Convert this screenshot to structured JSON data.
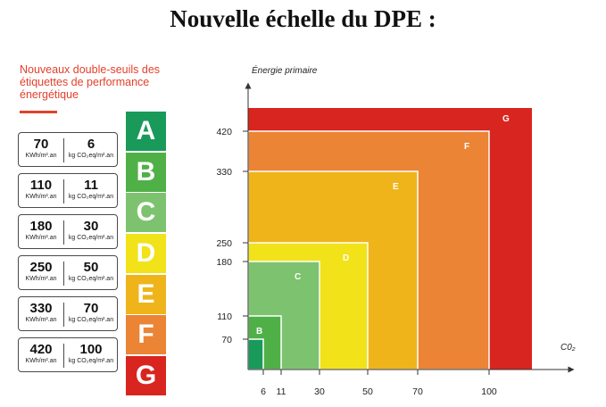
{
  "title": "Nouvelle échelle du DPE :",
  "subtitle": "Nouveaux double-seuils des étiquettes de performance énergétique",
  "units": {
    "energy": "KWh/m².an",
    "co2": "kg CO₂eq/m².an"
  },
  "thresholds": [
    {
      "energy": "70",
      "co2": "6"
    },
    {
      "energy": "110",
      "co2": "11"
    },
    {
      "energy": "180",
      "co2": "30"
    },
    {
      "energy": "250",
      "co2": "50"
    },
    {
      "energy": "330",
      "co2": "70"
    },
    {
      "energy": "420",
      "co2": "100"
    }
  ],
  "badges": [
    {
      "letter": "A",
      "color": "#1a9a5a"
    },
    {
      "letter": "B",
      "color": "#50b048"
    },
    {
      "letter": "C",
      "color": "#7dc36f"
    },
    {
      "letter": "D",
      "color": "#f2e21a"
    },
    {
      "letter": "E",
      "color": "#eeb41a"
    },
    {
      "letter": "F",
      "color": "#eb8434"
    },
    {
      "letter": "G",
      "color": "#d9251f"
    }
  ],
  "chart_data": {
    "type": "area",
    "ylabel": "Énergie primaire",
    "xlabel": "C0₂",
    "x_ticks": [
      6,
      11,
      30,
      50,
      70,
      100
    ],
    "y_ticks": [
      70,
      110,
      180,
      250,
      330,
      420
    ],
    "classes": [
      {
        "label": "G",
        "co2_max": 100,
        "energy_max": 420,
        "color": "#d9251f"
      },
      {
        "label": "F",
        "co2_max": 100,
        "energy_max": 420,
        "color": "#eb8434"
      },
      {
        "label": "E",
        "co2_max": 70,
        "energy_max": 330,
        "color": "#eeb41a"
      },
      {
        "label": "D",
        "co2_max": 50,
        "energy_max": 250,
        "color": "#f2e21a"
      },
      {
        "label": "C",
        "co2_max": 30,
        "energy_max": 180,
        "color": "#7dc36f"
      },
      {
        "label": "B",
        "co2_max": 11,
        "energy_max": 110,
        "color": "#50b048"
      },
      {
        "label": "A",
        "co2_max": 6,
        "energy_max": 70,
        "color": "#1a9a5a"
      }
    ]
  }
}
